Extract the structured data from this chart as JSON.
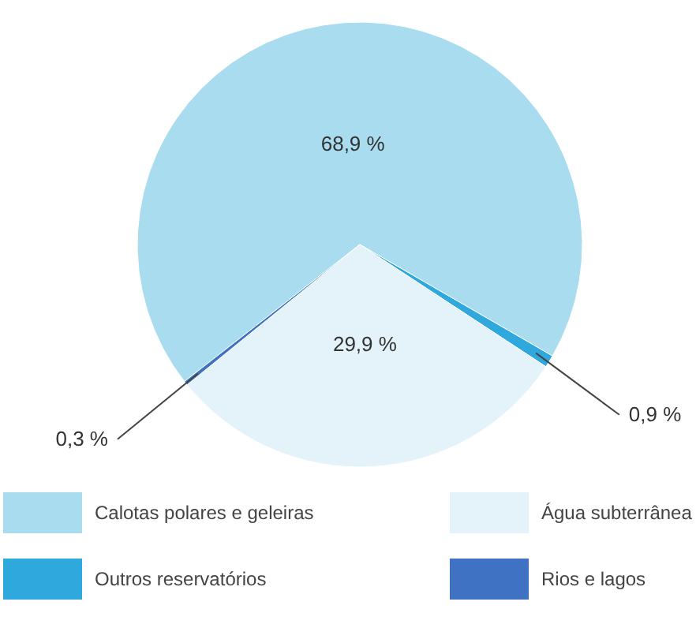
{
  "chart_data": {
    "type": "pie",
    "categories": [
      "Calotas polares e geleiras",
      "Outros reservatórios",
      "Água subterrânea",
      "Rios e lagos"
    ],
    "values": [
      68.9,
      0.9,
      29.9,
      0.3
    ],
    "colors": [
      "#a9dcef",
      "#2fa8dd",
      "#e4f2f9",
      "#3f72c2"
    ],
    "value_labels": [
      "68,9 %",
      "0,9 %",
      "29,9 %",
      "0,3 %"
    ],
    "legend": "bottom"
  }
}
